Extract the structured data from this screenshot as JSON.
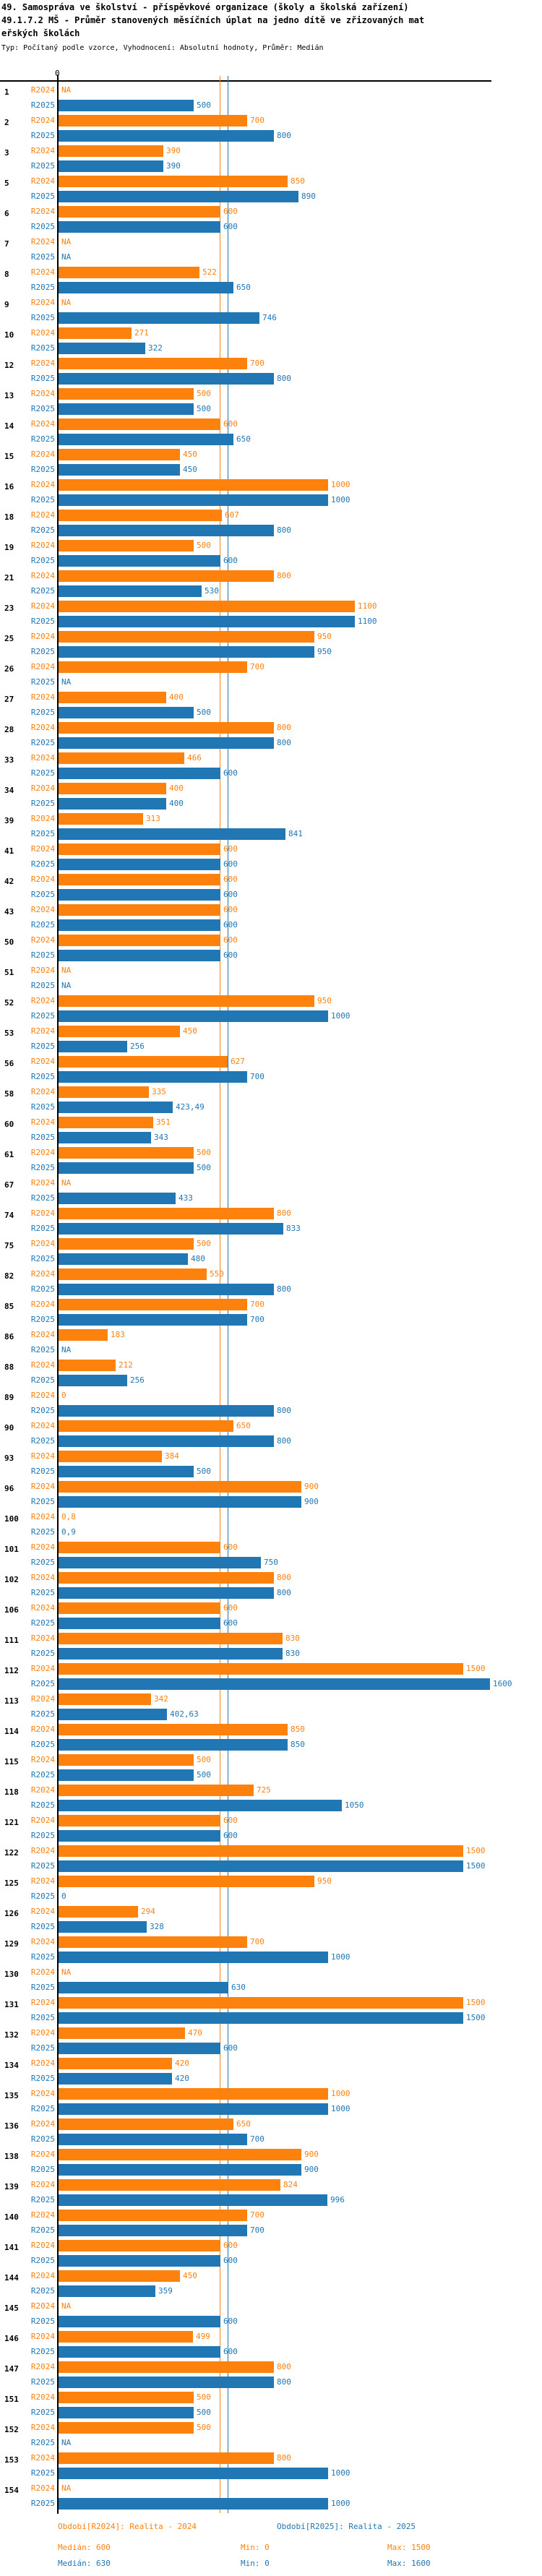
{
  "title": {
    "line1": "49. Samospráva ve školství - příspěvkové organizace (školy a školská zařízení)",
    "line2": "49.1.7.2 MŠ - Průměr stanovených měsíčních úplat na jedno dítě ve zřizovaných mat",
    "line3": "eřských školách",
    "type_line": "Typ: Počítaný podle vzorce, Vyhodnocení: Absolutní hodnoty, Průměr: Medián"
  },
  "chart": {
    "axis_zero_label": "0",
    "na_label": "NA",
    "series_label_r2024": "R2024",
    "series_label_r2025": "R2025",
    "colors": {
      "r2024": "#fd810d",
      "r2025": "#2077b4",
      "axis": "#000000"
    },
    "value_axis_min": 0,
    "value_axis_max": 1600,
    "median_line_r2024": 600,
    "median_line_r2025": 630
  },
  "chart_data": {
    "type": "bar",
    "orientation": "horizontal",
    "title": "49.1.7.2 MŠ - Průměr stanovených měsíčních úplat na jedno dítě ve zřizovaných mateřských školách",
    "xlabel": "",
    "ylabel": "",
    "xlim": [
      0,
      1600
    ],
    "grid": false,
    "legend_position": "bottom",
    "categories": [
      "1",
      "2",
      "3",
      "5",
      "6",
      "7",
      "8",
      "9",
      "10",
      "12",
      "13",
      "14",
      "15",
      "16",
      "18",
      "19",
      "21",
      "23",
      "25",
      "26",
      "27",
      "28",
      "33",
      "34",
      "39",
      "41",
      "42",
      "43",
      "50",
      "51",
      "52",
      "53",
      "56",
      "58",
      "60",
      "61",
      "67",
      "74",
      "75",
      "82",
      "85",
      "86",
      "88",
      "89",
      "90",
      "93",
      "96",
      "100",
      "101",
      "102",
      "106",
      "111",
      "112",
      "113",
      "114",
      "115",
      "118",
      "121",
      "122",
      "125",
      "126",
      "129",
      "130",
      "131",
      "132",
      "134",
      "135",
      "136",
      "138",
      "139",
      "140",
      "141",
      "144",
      "145",
      "146",
      "147",
      "151",
      "152",
      "153",
      "154"
    ],
    "series": [
      {
        "name": "R2024",
        "values": [
          null,
          700,
          390,
          850,
          600,
          null,
          522,
          null,
          271,
          700,
          500,
          600,
          450,
          1000,
          607,
          500,
          800,
          1100,
          950,
          700,
          400,
          800,
          466,
          400,
          313,
          600,
          600,
          600,
          600,
          null,
          950,
          450,
          627,
          335,
          351,
          500,
          null,
          800,
          500,
          550,
          700,
          183,
          212,
          0,
          650,
          384,
          900,
          0.8,
          600,
          800,
          600,
          830,
          1500,
          342,
          850,
          500,
          725,
          600,
          1500,
          950,
          294,
          700,
          null,
          1500,
          470,
          420,
          1000,
          650,
          900,
          824,
          700,
          600,
          450,
          null,
          499,
          800,
          500,
          500,
          800,
          null
        ]
      },
      {
        "name": "R2025",
        "values": [
          500,
          800,
          390,
          890,
          600,
          null,
          650,
          746,
          322,
          800,
          500,
          650,
          450,
          1000,
          800,
          600,
          530,
          1100,
          950,
          null,
          500,
          800,
          600,
          400,
          841,
          600,
          600,
          600,
          600,
          null,
          1000,
          256,
          700,
          423.49,
          343,
          500,
          433,
          833,
          480,
          800,
          700,
          null,
          256,
          800,
          800,
          500,
          900,
          0.9,
          750,
          800,
          600,
          830,
          1600,
          402.63,
          850,
          500,
          1050,
          600,
          1500,
          0,
          328,
          1000,
          630,
          1500,
          600,
          420,
          1000,
          700,
          900,
          996,
          700,
          600,
          359,
          600,
          600,
          800,
          500,
          null,
          1000,
          1000
        ]
      }
    ],
    "annotations": {
      "median_r2024": 600,
      "median_r2025": 630
    }
  },
  "footer": {
    "period_r2024": "Období[R2024]: Realita - 2024",
    "period_r2025": "Období[R2025]: Realita - 2025",
    "stats_r2024": {
      "median": "Medián: 600",
      "min": "Min: 0",
      "max": "Max: 1500"
    },
    "stats_r2025": {
      "median": "Medián: 630",
      "min": "Min: 0",
      "max": "Max: 1600"
    }
  }
}
